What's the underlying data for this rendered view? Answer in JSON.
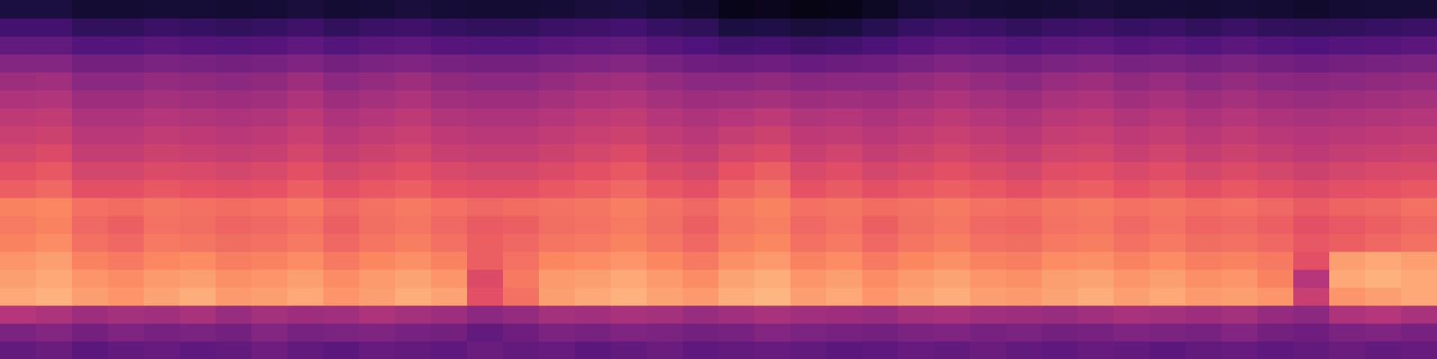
{
  "chart_data": {
    "type": "heatmap",
    "tick_labels": false,
    "xlim": [
      0,
      40
    ],
    "ylim": [
      0,
      20
    ],
    "zlim": [
      0,
      100
    ],
    "cells": [
      [
        30,
        32,
        28,
        30,
        31,
        29,
        30,
        33,
        30,
        28,
        31,
        30,
        29,
        32,
        30,
        31,
        28,
        30,
        32,
        29,
        30,
        31,
        30,
        28,
        29,
        31,
        30,
        32,
        30,
        29,
        31,
        30,
        28,
        30,
        31,
        29,
        30,
        32,
        30,
        31
      ],
      [
        36,
        38,
        34,
        37,
        35,
        36,
        34,
        38,
        35,
        36,
        37,
        35,
        34,
        30,
        33,
        36,
        35,
        37,
        36,
        34,
        35,
        38,
        36,
        35,
        34,
        36,
        37,
        35,
        36,
        34,
        35,
        37,
        36,
        35,
        38,
        34,
        33,
        36,
        37,
        35
      ],
      [
        50,
        48,
        44,
        46,
        45,
        47,
        43,
        46,
        44,
        45,
        48,
        46,
        44,
        40,
        42,
        46,
        45,
        47,
        46,
        43,
        45,
        47,
        45,
        44,
        43,
        46,
        47,
        45,
        44,
        43,
        45,
        47,
        46,
        44,
        46,
        42,
        40,
        48,
        50,
        47
      ],
      [
        82,
        84,
        80,
        78,
        81,
        83,
        79,
        80,
        82,
        78,
        80,
        83,
        81,
        62,
        70,
        80,
        82,
        84,
        81,
        79,
        83,
        85,
        80,
        82,
        78,
        81,
        83,
        80,
        79,
        81,
        83,
        80,
        82,
        79,
        80,
        78,
        55,
        78,
        80,
        82
      ],
      [
        80,
        82,
        78,
        76,
        79,
        80,
        77,
        78,
        80,
        76,
        79,
        81,
        78,
        60,
        72,
        79,
        80,
        82,
        79,
        76,
        81,
        83,
        78,
        80,
        76,
        79,
        81,
        78,
        77,
        80,
        81,
        78,
        80,
        77,
        78,
        74,
        50,
        82,
        84,
        82
      ],
      [
        78,
        80,
        74,
        72,
        75,
        76,
        73,
        74,
        76,
        72,
        75,
        77,
        74,
        66,
        70,
        75,
        76,
        78,
        75,
        72,
        77,
        79,
        74,
        76,
        72,
        75,
        77,
        74,
        73,
        76,
        77,
        74,
        76,
        73,
        74,
        72,
        62,
        80,
        82,
        80
      ],
      [
        74,
        76,
        70,
        68,
        72,
        71,
        69,
        70,
        72,
        68,
        71,
        73,
        70,
        66,
        68,
        71,
        72,
        74,
        71,
        68,
        73,
        75,
        70,
        72,
        68,
        71,
        73,
        70,
        69,
        72,
        73,
        70,
        72,
        69,
        70,
        68,
        64,
        66,
        68,
        70
      ],
      [
        72,
        74,
        68,
        66,
        70,
        69,
        67,
        68,
        70,
        66,
        69,
        71,
        68,
        65,
        66,
        69,
        70,
        72,
        69,
        66,
        71,
        73,
        68,
        70,
        66,
        69,
        71,
        68,
        67,
        70,
        71,
        68,
        70,
        67,
        68,
        66,
        62,
        64,
        66,
        68
      ],
      [
        74,
        75,
        70,
        69,
        71,
        70,
        69,
        70,
        72,
        68,
        70,
        72,
        70,
        68,
        69,
        70,
        71,
        73,
        70,
        68,
        72,
        74,
        70,
        71,
        69,
        70,
        72,
        70,
        69,
        71,
        72,
        70,
        71,
        69,
        70,
        68,
        65,
        67,
        68,
        70
      ],
      [
        66,
        68,
        62,
        62,
        64,
        63,
        62,
        63,
        66,
        62,
        64,
        66,
        63,
        62,
        62,
        64,
        66,
        68,
        64,
        62,
        67,
        70,
        63,
        65,
        62,
        64,
        66,
        64,
        62,
        65,
        66,
        63,
        65,
        62,
        64,
        62,
        60,
        62,
        63,
        64
      ],
      [
        62,
        64,
        58,
        58,
        60,
        59,
        58,
        59,
        62,
        58,
        60,
        62,
        59,
        58,
        58,
        60,
        62,
        64,
        60,
        58,
        63,
        66,
        59,
        61,
        58,
        60,
        62,
        60,
        58,
        61,
        62,
        59,
        61,
        58,
        60,
        58,
        56,
        58,
        59,
        60
      ],
      [
        58,
        60,
        54,
        54,
        56,
        55,
        54,
        55,
        58,
        54,
        56,
        58,
        55,
        54,
        54,
        56,
        58,
        60,
        56,
        54,
        58,
        60,
        55,
        57,
        54,
        56,
        58,
        56,
        54,
        57,
        58,
        55,
        57,
        54,
        56,
        54,
        52,
        54,
        55,
        56
      ],
      [
        55,
        56,
        51,
        51,
        53,
        52,
        51,
        52,
        55,
        51,
        53,
        55,
        52,
        51,
        51,
        53,
        55,
        56,
        53,
        51,
        54,
        56,
        52,
        53,
        51,
        53,
        55,
        53,
        51,
        54,
        55,
        52,
        54,
        51,
        53,
        51,
        50,
        51,
        52,
        53
      ],
      [
        52,
        53,
        48,
        48,
        50,
        49,
        48,
        49,
        52,
        48,
        50,
        52,
        49,
        48,
        48,
        50,
        52,
        53,
        50,
        48,
        50,
        52,
        49,
        50,
        48,
        50,
        52,
        50,
        48,
        51,
        52,
        49,
        51,
        48,
        50,
        48,
        47,
        48,
        49,
        50
      ],
      [
        48,
        49,
        44,
        44,
        46,
        45,
        44,
        45,
        48,
        44,
        46,
        48,
        45,
        44,
        44,
        46,
        48,
        49,
        46,
        44,
        45,
        46,
        44,
        45,
        44,
        46,
        48,
        46,
        44,
        47,
        48,
        45,
        47,
        44,
        46,
        44,
        43,
        44,
        45,
        46
      ],
      [
        44,
        45,
        40,
        40,
        42,
        41,
        40,
        41,
        44,
        40,
        42,
        44,
        41,
        40,
        40,
        42,
        44,
        45,
        42,
        40,
        40,
        41,
        39,
        40,
        40,
        42,
        44,
        42,
        40,
        43,
        44,
        41,
        43,
        40,
        42,
        40,
        39,
        40,
        41,
        42
      ],
      [
        38,
        38,
        34,
        34,
        36,
        35,
        34,
        35,
        37,
        34,
        36,
        37,
        35,
        34,
        34,
        36,
        37,
        38,
        35,
        33,
        32,
        33,
        31,
        32,
        33,
        35,
        37,
        36,
        34,
        36,
        37,
        35,
        36,
        34,
        36,
        34,
        33,
        34,
        35,
        36
      ],
      [
        30,
        30,
        26,
        26,
        28,
        27,
        26,
        27,
        29,
        26,
        28,
        29,
        27,
        26,
        26,
        28,
        29,
        30,
        27,
        25,
        22,
        23,
        21,
        22,
        24,
        27,
        29,
        28,
        26,
        28,
        29,
        27,
        28,
        26,
        28,
        26,
        25,
        26,
        27,
        28
      ],
      [
        22,
        22,
        18,
        18,
        20,
        19,
        18,
        19,
        21,
        18,
        20,
        21,
        19,
        18,
        18,
        20,
        21,
        22,
        19,
        17,
        12,
        13,
        11,
        12,
        15,
        19,
        21,
        20,
        18,
        20,
        21,
        19,
        20,
        18,
        20,
        18,
        17,
        18,
        19,
        20
      ],
      [
        12,
        12,
        9,
        9,
        10,
        10,
        9,
        10,
        11,
        9,
        10,
        11,
        10,
        9,
        9,
        10,
        11,
        12,
        10,
        8,
        4,
        5,
        3,
        4,
        6,
        10,
        11,
        10,
        9,
        10,
        11,
        10,
        10,
        9,
        10,
        9,
        8,
        9,
        10,
        10
      ]
    ]
  }
}
